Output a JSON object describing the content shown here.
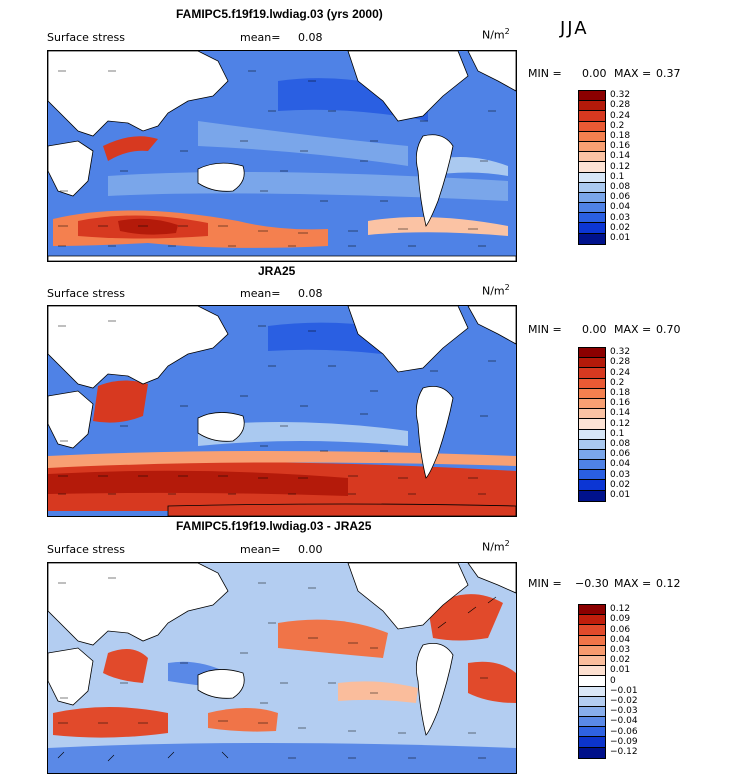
{
  "season": "JJA",
  "units": "N/m",
  "units_exp": "2",
  "panels": [
    {
      "title": "FAMIPC5.f19f19.lwdiag.03 (yrs 2000)",
      "field": "Surface stress",
      "mean_label": "mean=",
      "mean": "0.08",
      "min_label": "MIN =",
      "min": "0.00",
      "max_label": "MAX =",
      "max": "0.37",
      "levels": [
        "0.32",
        "0.28",
        "0.24",
        "0.2",
        "0.18",
        "0.16",
        "0.14",
        "0.12",
        "0.1",
        "0.08",
        "0.06",
        "0.04",
        "0.03",
        "0.02",
        "0.01"
      ],
      "colors": [
        "#8b0000",
        "#b41a0a",
        "#d73920",
        "#ea5a34",
        "#f4804f",
        "#f8a073",
        "#fbc3a4",
        "#fde3d5",
        "#d7e6f7",
        "#aac9f0",
        "#7aa6ea",
        "#4f82e6",
        "#2a5fe2",
        "#0c36d4",
        "#00128c"
      ]
    },
    {
      "title": "JRA25",
      "field": "Surface stress",
      "mean_label": "mean=",
      "mean": "0.08",
      "min_label": "MIN =",
      "min": "0.00",
      "max_label": "MAX =",
      "max": "0.70",
      "levels": [
        "0.32",
        "0.28",
        "0.24",
        "0.2",
        "0.18",
        "0.16",
        "0.14",
        "0.12",
        "0.1",
        "0.08",
        "0.06",
        "0.04",
        "0.03",
        "0.02",
        "0.01"
      ],
      "colors": [
        "#8b0000",
        "#b41a0a",
        "#d73920",
        "#ea5a34",
        "#f4804f",
        "#f8a073",
        "#fbc3a4",
        "#fde3d5",
        "#d7e6f7",
        "#aac9f0",
        "#7aa6ea",
        "#4f82e6",
        "#2a5fe2",
        "#0c36d4",
        "#00128c"
      ]
    },
    {
      "title": "FAMIPC5.f19f19.lwdiag.03 - JRA25",
      "field": "Surface stress",
      "mean_label": "mean=",
      "mean": "0.00",
      "min_label": "MIN =",
      "min": "−0.30",
      "max_label": "MAX =",
      "max": "0.12",
      "levels": [
        "0.12",
        "0.09",
        "0.06",
        "0.04",
        "0.03",
        "0.02",
        "0.01",
        "0",
        "−0.01",
        "−0.02",
        "−0.03",
        "−0.04",
        "−0.06",
        "−0.09",
        "−0.12"
      ],
      "colors": [
        "#8b0000",
        "#c01e0c",
        "#e14a2b",
        "#f07448",
        "#f69a6e",
        "#fabd9c",
        "#fde0d0",
        "#ffffff",
        "#dae7f7",
        "#b3cdf1",
        "#88aeec",
        "#5a89e7",
        "#2f62e2",
        "#0c34cc",
        "#00108a"
      ]
    }
  ]
}
